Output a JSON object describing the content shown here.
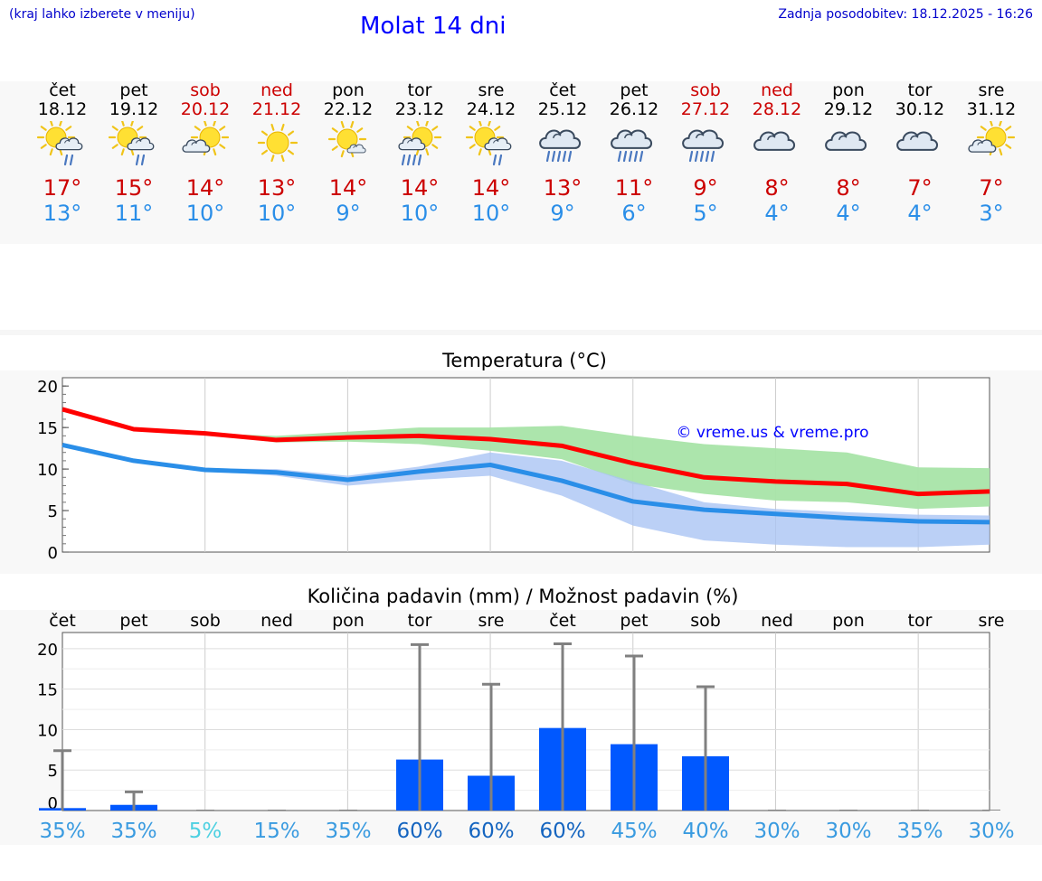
{
  "header": {
    "menu_hint": "(kraj lahko izberete v meniju)",
    "title": "Molat 14 dni",
    "updated": "Zadnja posodobitev: 18.12.2025 - 16:26"
  },
  "colors": {
    "max_temp": "#ff0000",
    "min_temp": "#2a8ee8",
    "max_range": "#a8e4a8",
    "min_range": "#aac4f4",
    "precip_bar": "#0058ff"
  },
  "days": [
    {
      "name": "čet",
      "date": "18.12",
      "weekend": false,
      "icon": "sun-cloud-rain-icon",
      "hi": "17°",
      "lo": "13°",
      "chance": "35%"
    },
    {
      "name": "pet",
      "date": "19.12",
      "weekend": false,
      "icon": "sun-cloud-rain-icon",
      "hi": "15°",
      "lo": "11°",
      "chance": "35%"
    },
    {
      "name": "sob",
      "date": "20.12",
      "weekend": true,
      "icon": "sun-cloud-icon",
      "hi": "14°",
      "lo": "10°",
      "chance": "5%"
    },
    {
      "name": "ned",
      "date": "21.12",
      "weekend": true,
      "icon": "sun-icon",
      "hi": "13°",
      "lo": "10°",
      "chance": "15%"
    },
    {
      "name": "pon",
      "date": "22.12",
      "weekend": false,
      "icon": "sun-small-cloud-icon",
      "hi": "14°",
      "lo": "9°",
      "chance": "35%"
    },
    {
      "name": "tor",
      "date": "23.12",
      "weekend": false,
      "icon": "sun-cloud-heavy-rain-icon",
      "hi": "14°",
      "lo": "10°",
      "chance": "60%"
    },
    {
      "name": "sre",
      "date": "24.12",
      "weekend": false,
      "icon": "sun-cloud-rain-icon",
      "hi": "14°",
      "lo": "10°",
      "chance": "60%"
    },
    {
      "name": "čet",
      "date": "25.12",
      "weekend": false,
      "icon": "cloud-heavy-rain-icon",
      "hi": "13°",
      "lo": "9°",
      "chance": "60%"
    },
    {
      "name": "pet",
      "date": "26.12",
      "weekend": false,
      "icon": "cloud-heavy-rain-icon",
      "hi": "11°",
      "lo": "6°",
      "chance": "45%"
    },
    {
      "name": "sob",
      "date": "27.12",
      "weekend": true,
      "icon": "cloud-heavy-rain-icon",
      "hi": "9°",
      "lo": "5°",
      "chance": "40%"
    },
    {
      "name": "ned",
      "date": "28.12",
      "weekend": true,
      "icon": "cloud-icon",
      "hi": "8°",
      "lo": "4°",
      "chance": "30%"
    },
    {
      "name": "pon",
      "date": "29.12",
      "weekend": false,
      "icon": "cloud-icon",
      "hi": "8°",
      "lo": "4°",
      "chance": "30%"
    },
    {
      "name": "tor",
      "date": "30.12",
      "weekend": false,
      "icon": "cloud-icon",
      "hi": "7°",
      "lo": "4°",
      "chance": "35%"
    },
    {
      "name": "sre",
      "date": "31.12",
      "weekend": false,
      "icon": "sun-cloud-icon",
      "hi": "7°",
      "lo": "3°",
      "chance": "30%"
    }
  ],
  "chart_data": [
    {
      "type": "line",
      "title": "Temperatura (°C)",
      "watermark": "© vreme.us & vreme.pro",
      "x": [
        0,
        1,
        2,
        3,
        4,
        5,
        6,
        7,
        8,
        9,
        10,
        11,
        12,
        13
      ],
      "ylim": [
        0,
        21
      ],
      "yticks": [
        0,
        5,
        10,
        15,
        20
      ],
      "series": [
        {
          "name": "max",
          "values": [
            17.2,
            14.8,
            14.3,
            13.5,
            13.8,
            14.0,
            13.6,
            12.8,
            10.7,
            9.0,
            8.5,
            8.2,
            7.0,
            7.3
          ],
          "range_low": [
            17.2,
            15.0,
            14.2,
            13.2,
            13.3,
            13.0,
            12.2,
            11.2,
            8.2,
            7.0,
            6.2,
            6.0,
            5.2,
            5.5
          ],
          "range_high": [
            17.2,
            15.0,
            14.3,
            14.0,
            14.5,
            15.0,
            15.0,
            15.2,
            14.0,
            13.0,
            12.5,
            12.0,
            10.2,
            10.1
          ]
        },
        {
          "name": "min",
          "values": [
            12.9,
            11.0,
            9.9,
            9.6,
            8.7,
            9.7,
            10.5,
            8.6,
            6.1,
            5.1,
            4.6,
            4.1,
            3.7,
            3.6
          ],
          "range_low": [
            12.9,
            11.0,
            9.8,
            9.2,
            8.0,
            8.7,
            9.2,
            6.8,
            3.2,
            1.4,
            0.9,
            0.6,
            0.6,
            0.9
          ],
          "range_high": [
            12.9,
            11.0,
            10.1,
            10.0,
            9.2,
            10.3,
            12.0,
            11.0,
            8.5,
            6.0,
            5.2,
            4.8,
            4.5,
            4.4
          ]
        }
      ]
    },
    {
      "type": "bar",
      "title": "Količina padavin (mm) / Možnost padavin (%)",
      "categories": [
        "čet",
        "pet",
        "sob",
        "ned",
        "pon",
        "tor",
        "sre",
        "čet",
        "pet",
        "sob",
        "ned",
        "pon",
        "tor",
        "sre"
      ],
      "values": [
        0.3,
        0.7,
        0,
        0,
        0,
        6.3,
        4.3,
        10.2,
        8.2,
        6.7,
        0,
        0,
        0,
        0
      ],
      "error_max": [
        7.4,
        2.3,
        0,
        0,
        0,
        20.5,
        15.6,
        20.6,
        19.1,
        15.3,
        0,
        0,
        0,
        0
      ],
      "chance": [
        "35%",
        "35%",
        "5%",
        "15%",
        "35%",
        "60%",
        "60%",
        "60%",
        "45%",
        "40%",
        "30%",
        "30%",
        "35%",
        "30%"
      ],
      "ylim": [
        0,
        22
      ],
      "yticks": [
        0,
        5,
        10,
        15,
        20
      ]
    }
  ]
}
